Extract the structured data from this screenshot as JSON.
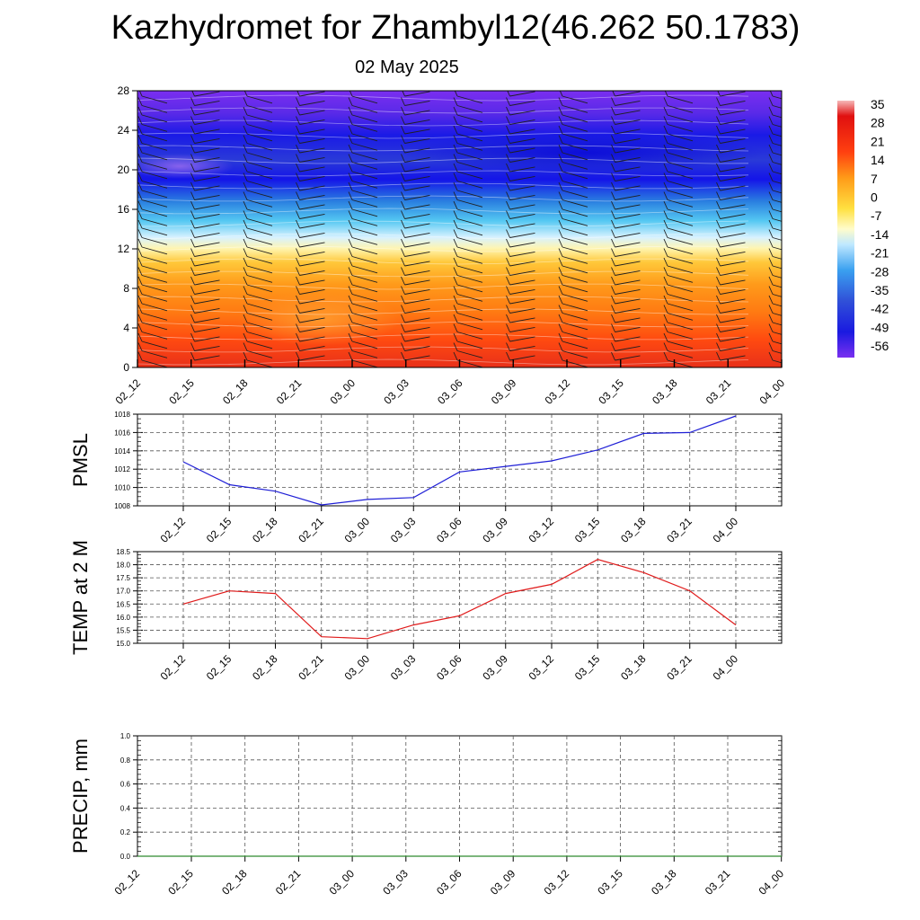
{
  "header": {
    "title": "Kazhydromet for Zhambyl12(46.262 50.1783)",
    "subtitle": "02 May 2025"
  },
  "colorbar": {
    "labels": [
      "35",
      "28",
      "21",
      "14",
      "7",
      "0",
      "-7",
      "-14",
      "-21",
      "-28",
      "-35",
      "-42",
      "-49",
      "-56"
    ]
  },
  "time_labels": [
    "02_12",
    "02_15",
    "02_18",
    "02_21",
    "03_00",
    "03_03",
    "03_06",
    "03_09",
    "03_12",
    "03_15",
    "03_18",
    "03_21",
    "04_00"
  ],
  "chart_data": [
    {
      "type": "heatmap",
      "name": "temperature-wind cross section",
      "y_ticks": [
        0,
        4,
        8,
        12,
        16,
        20,
        24,
        28
      ],
      "ylim": [
        0,
        28
      ],
      "x_labels": [
        "02_12",
        "02_15",
        "02_18",
        "02_21",
        "03_00",
        "03_03",
        "03_06",
        "03_09",
        "03_12",
        "03_15",
        "03_18",
        "03_21",
        "04_00"
      ],
      "color_levels": [
        35,
        28,
        21,
        14,
        7,
        0,
        -7,
        -14,
        -21,
        -28,
        -35,
        -42,
        -49,
        -56
      ],
      "grid": false
    },
    {
      "type": "line",
      "ylabel": "PMSL",
      "x": [
        "02_12",
        "02_15",
        "02_18",
        "02_21",
        "03_00",
        "03_03",
        "03_06",
        "03_09",
        "03_12",
        "03_15",
        "03_18",
        "03_21",
        "04_00"
      ],
      "values": [
        1012.8,
        1010.3,
        1009.6,
        1008.1,
        1008.7,
        1008.9,
        1011.7,
        1012.3,
        1012.9,
        1014.1,
        1015.9,
        1016.0,
        1017.8
      ],
      "y_ticks": [
        "1008",
        "1010",
        "1012",
        "1014",
        "1016",
        "1018"
      ],
      "ylim": [
        1008,
        1018
      ],
      "color": "#1f1fd6",
      "grid": true
    },
    {
      "type": "line",
      "ylabel": "TEMP at 2 M",
      "x": [
        "02_12",
        "02_15",
        "02_18",
        "02_21",
        "03_00",
        "03_03",
        "03_06",
        "03_09",
        "03_12",
        "03_15",
        "03_18",
        "03_21",
        "04_00"
      ],
      "values": [
        16.5,
        17.0,
        16.9,
        15.25,
        15.18,
        15.7,
        16.05,
        16.9,
        17.25,
        18.2,
        17.7,
        17.0,
        15.7
      ],
      "y_ticks": [
        "15.0",
        "15.5",
        "16.0",
        "16.5",
        "17.0",
        "17.5",
        "18.0",
        "18.5"
      ],
      "ylim": [
        15.0,
        18.5
      ],
      "color": "#e01b1b",
      "grid": true
    },
    {
      "type": "line",
      "ylabel": "PRECIP, mm",
      "x_labels": [
        "02_12",
        "02_15",
        "02_18",
        "02_21",
        "03_00",
        "03_03",
        "03_06",
        "03_09",
        "03_12",
        "03_15",
        "03_18",
        "03_21",
        "04_00"
      ],
      "values": [
        0,
        0,
        0,
        0,
        0,
        0,
        0,
        0,
        0,
        0,
        0,
        0,
        0
      ],
      "y_ticks": [
        "0.0",
        "0.2",
        "0.4",
        "0.6",
        "0.8",
        "1.0"
      ],
      "ylim": [
        0,
        1
      ],
      "color": "#2e8b2e",
      "grid": true
    }
  ]
}
